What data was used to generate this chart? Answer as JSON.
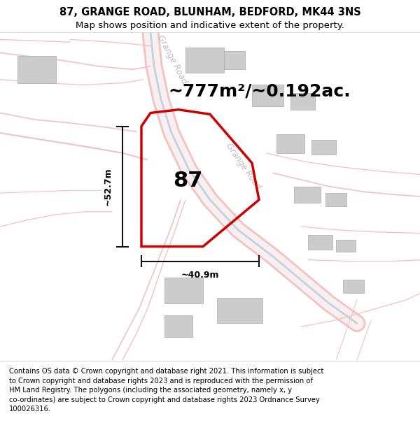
{
  "title": "87, GRANGE ROAD, BLUNHAM, BEDFORD, MK44 3NS",
  "subtitle": "Map shows position and indicative extent of the property.",
  "footer": "Contains OS data © Crown copyright and database right 2021. This information is subject\nto Crown copyright and database rights 2023 and is reproduced with the permission of\nHM Land Registry. The polygons (including the associated geometry, namely x, y\nco-ordinates) are subject to Crown copyright and database rights 2023 Ordnance Survey\n100026316.",
  "area_label": "~777m²/~0.192ac.",
  "width_label": "~40.9m",
  "height_label": "~52.7m",
  "property_number": "87",
  "bg_color": "#ffffff",
  "map_bg": "#ffffff",
  "road_color": "#f5c0c0",
  "road_color2": "#e89898",
  "road_color_blue": "#b8d8e8",
  "building_color": "#cccccc",
  "building_edge": "#aaaaaa",
  "property_outline_color": "#cc0000",
  "dim_line_color": "#111111",
  "road_label_color": "#bbbbbb",
  "title_fontsize": 10.5,
  "subtitle_fontsize": 9.5,
  "footer_fontsize": 7.2,
  "area_fontsize": 18,
  "number_fontsize": 22,
  "dim_fontsize": 9
}
